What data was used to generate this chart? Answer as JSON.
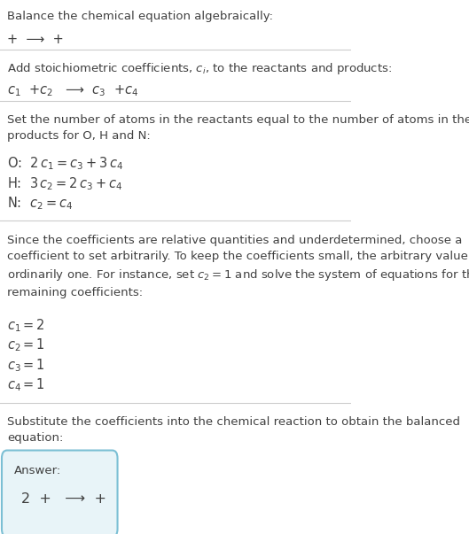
{
  "bg_color": "#ffffff",
  "text_color": "#404040",
  "section1_title": "Balance the chemical equation algebraically:",
  "section1_line": "+  ⟶  +",
  "section2_title": "Add stoichiometric coefficients, $c_i$, to the reactants and products:",
  "section2_line": "$c_1$  +$c_2$   ⟶  $c_3$  +$c_4$",
  "section3_title": "Set the number of atoms in the reactants equal to the number of atoms in the\nproducts for O, H and N:",
  "section3_lines": [
    "O:  $2\\,c_1 = c_3 + 3\\,c_4$",
    "H:  $3\\,c_2 = 2\\,c_3 + c_4$",
    "N:  $c_2 = c_4$"
  ],
  "section4_title": "Since the coefficients are relative quantities and underdetermined, choose a\ncoefficient to set arbitrarily. To keep the coefficients small, the arbitrary value is\nordinarily one. For instance, set $c_2 = 1$ and solve the system of equations for the\nremaining coefficients:",
  "section4_lines": [
    "$c_1 = 2$",
    "$c_2 = 1$",
    "$c_3 = 1$",
    "$c_4 = 1$"
  ],
  "section5_title": "Substitute the coefficients into the chemical reaction to obtain the balanced\nequation:",
  "answer_label": "Answer:",
  "answer_line": "2  +   ⟶  +",
  "answer_box_color": "#e8f4f8",
  "answer_border_color": "#7bbfd4",
  "line_color": "#cccccc",
  "font_size": 9.5,
  "font_size_eq": 10.5
}
